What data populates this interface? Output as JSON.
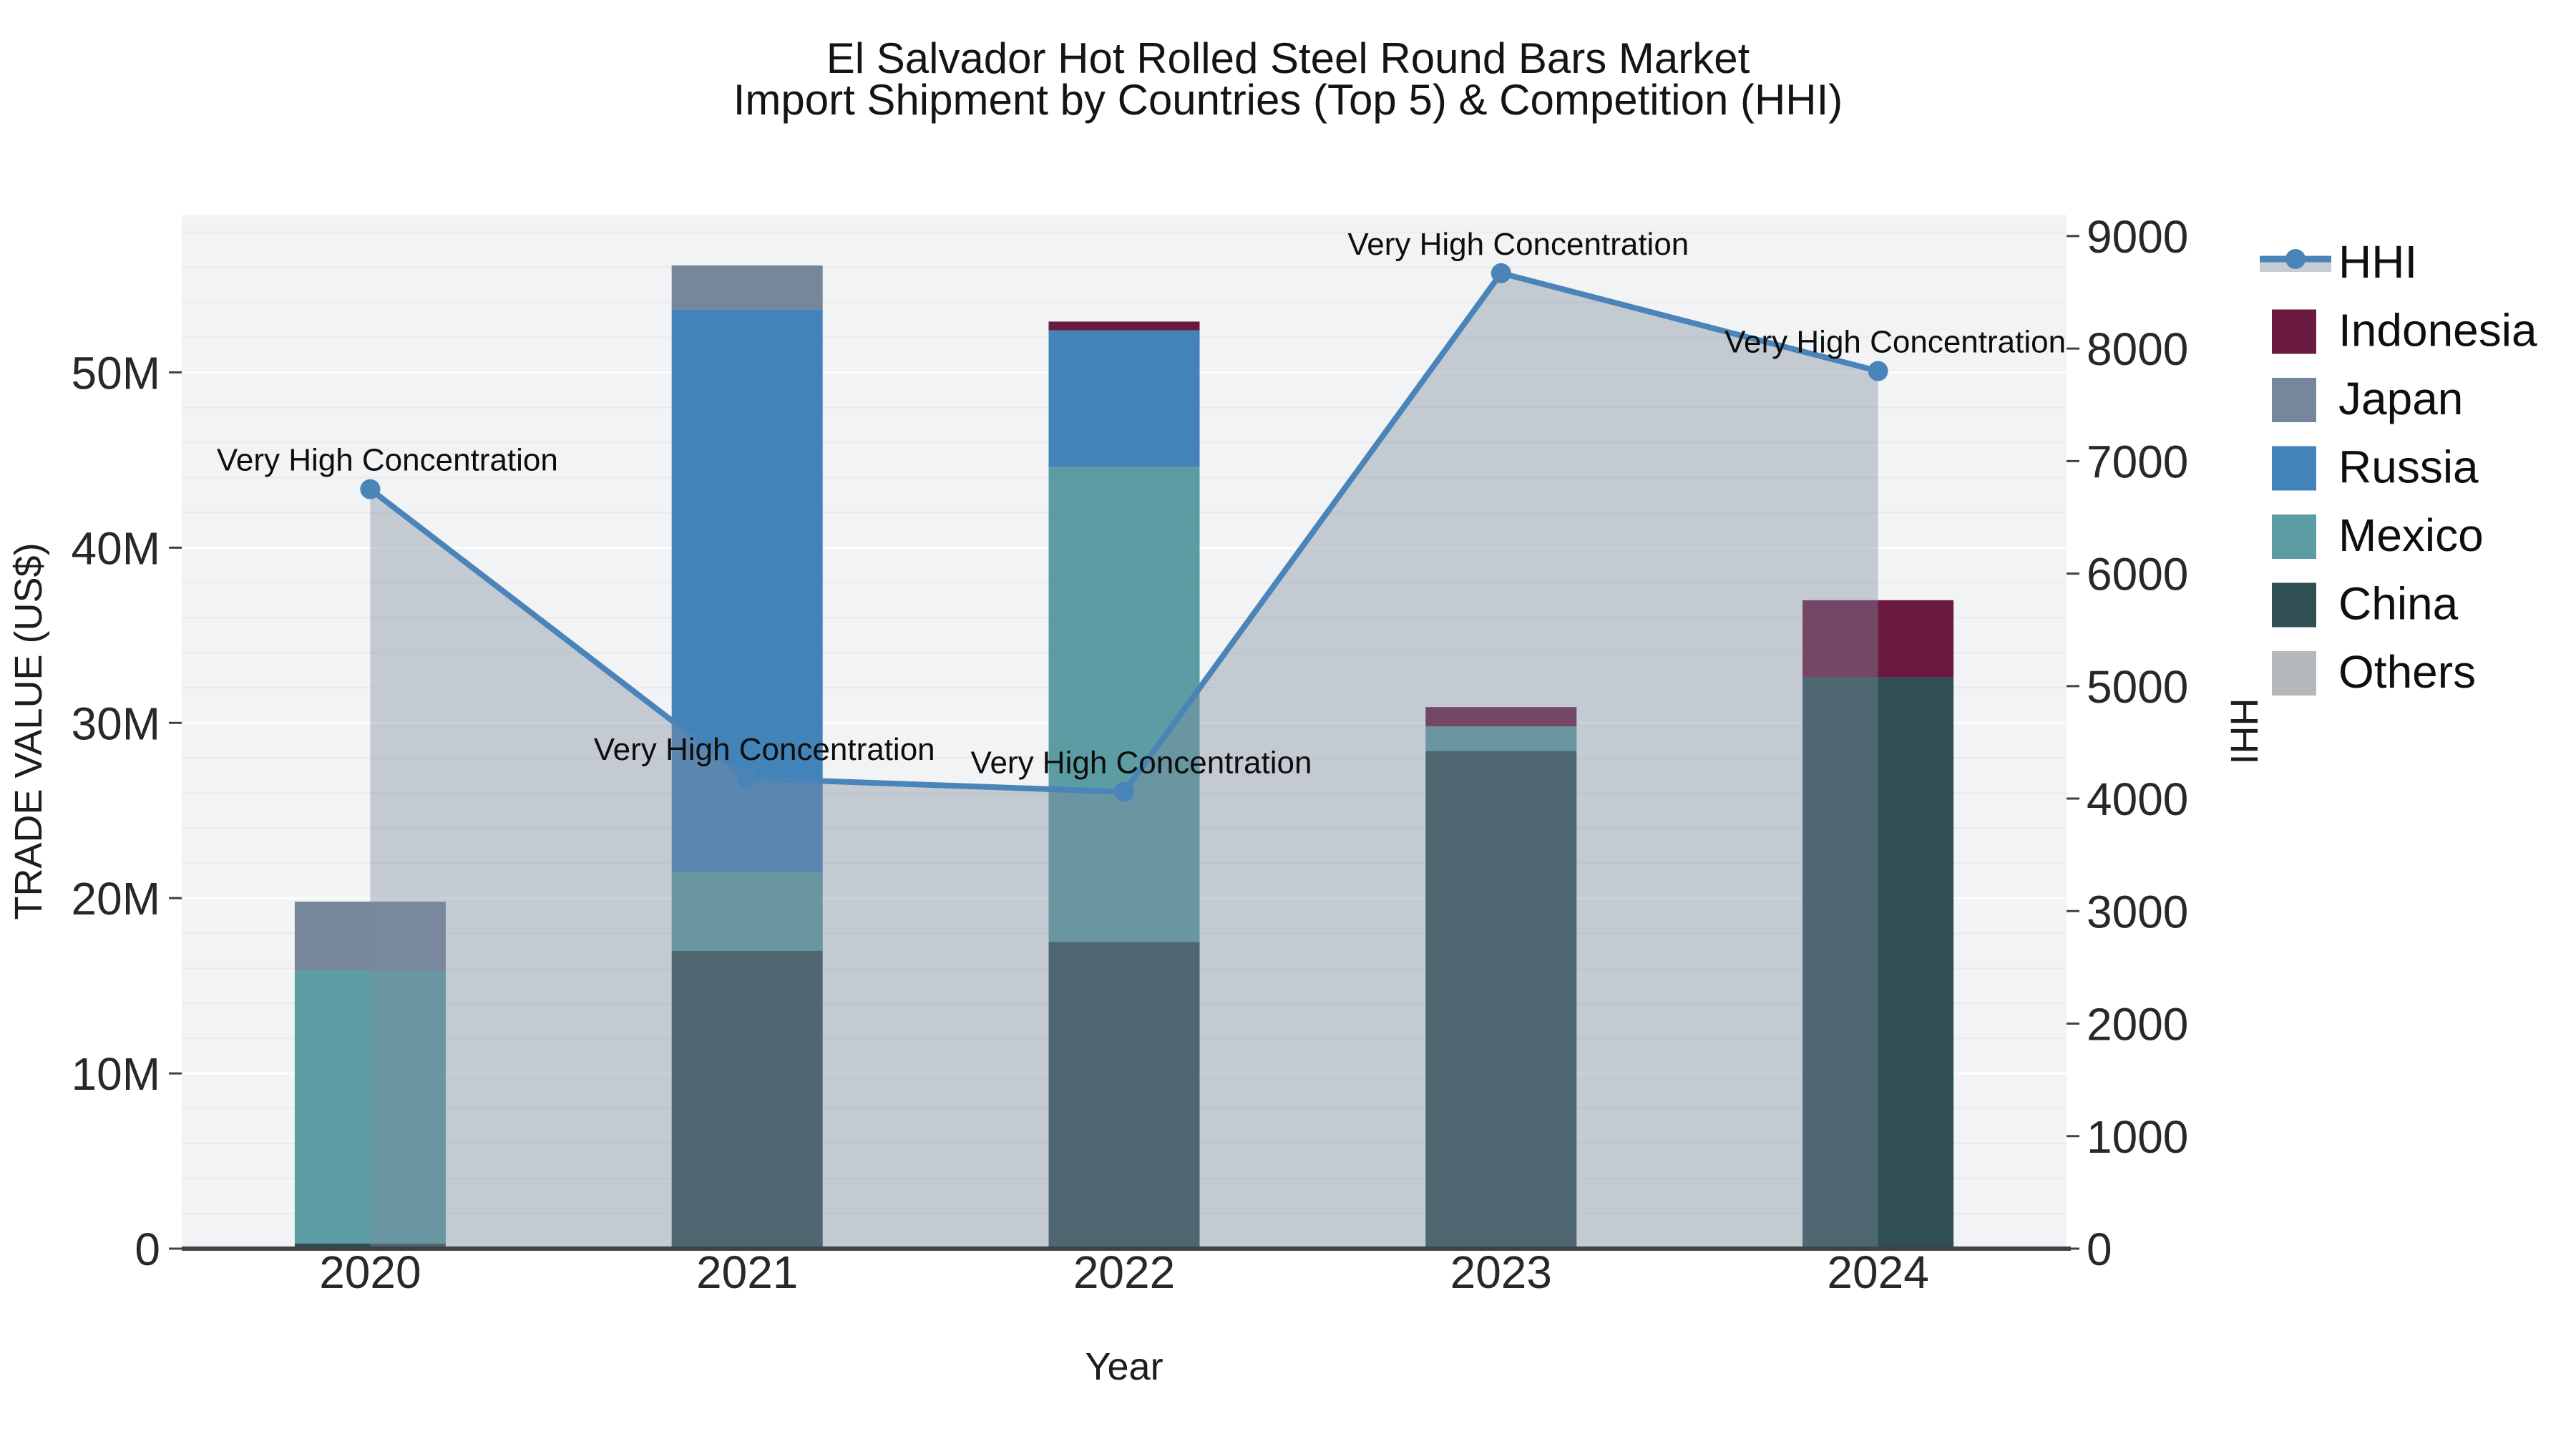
{
  "title": {
    "line1": "El Salvador Hot Rolled Steel Round Bars Market",
    "line2": "Import Shipment by Countries (Top 5) & Competition (HHI)"
  },
  "chart_data": {
    "type": "stacked_bar_with_line",
    "categories": [
      "2020",
      "2021",
      "2022",
      "2023",
      "2024"
    ],
    "xlabel": "Year",
    "ylabel_left": "TRADE VALUE (US$)",
    "ylabel_right": "HHI",
    "ylim_left_musd": [
      0,
      59
    ],
    "ylim_right": [
      0,
      9190
    ],
    "yticks_left": [
      {
        "label": "0",
        "value_musd": 0
      },
      {
        "label": "10M",
        "value_musd": 10
      },
      {
        "label": "20M",
        "value_musd": 20
      },
      {
        "label": "30M",
        "value_musd": 30
      },
      {
        "label": "40M",
        "value_musd": 40
      },
      {
        "label": "50M",
        "value_musd": 50
      }
    ],
    "yticks_right": [
      {
        "label": "0",
        "value": 0
      },
      {
        "label": "1000",
        "value": 1000
      },
      {
        "label": "2000",
        "value": 2000
      },
      {
        "label": "3000",
        "value": 3000
      },
      {
        "label": "4000",
        "value": 4000
      },
      {
        "label": "5000",
        "value": 5000
      },
      {
        "label": "6000",
        "value": 6000
      },
      {
        "label": "7000",
        "value": 7000
      },
      {
        "label": "8000",
        "value": 8000
      },
      {
        "label": "9000",
        "value": 9000
      }
    ],
    "bar_series": [
      {
        "name": "China",
        "color": "#2F4F53",
        "values_musd": [
          0.3,
          17.0,
          17.5,
          28.4,
          32.6
        ]
      },
      {
        "name": "Mexico",
        "color": "#5B9DA2",
        "values_musd": [
          15.6,
          4.5,
          27.1,
          1.4,
          0
        ]
      },
      {
        "name": "Russia",
        "color": "#4283B9",
        "values_musd": [
          0,
          32.1,
          7.8,
          0,
          0
        ]
      },
      {
        "name": "Japan",
        "color": "#76869B",
        "values_musd": [
          3.9,
          2.5,
          0,
          0,
          0
        ]
      },
      {
        "name": "Indonesia",
        "color": "#6B1A3F",
        "values_musd": [
          0,
          0,
          0.5,
          1.1,
          4.4
        ]
      },
      {
        "name": "Others",
        "color": "#B4B8BB",
        "values_musd": [
          0,
          0,
          0,
          0,
          0
        ]
      }
    ],
    "line_series": {
      "name": "HHI",
      "color": "#4A84B8",
      "fill_color": "#7F8BA0",
      "fill_opacity": 0.4,
      "values": [
        6750,
        4180,
        4060,
        8670,
        7800
      ]
    },
    "annotations": [
      "Very High Concentration",
      "Very High Concentration",
      "Very High Concentration",
      "Very High Concentration",
      "Very High Concentration"
    ],
    "legend": {
      "position": "right-outside-top",
      "order": [
        "HHI",
        "Indonesia",
        "Japan",
        "Russia",
        "Mexico",
        "China",
        "Others"
      ],
      "hhi_band_color": "#C7CBD3"
    },
    "plot_bg": "#F2F3F4",
    "grid_major_color": "#FDFDFE",
    "grid_minor_color": "#E8EAEC",
    "axis_line_color": "#3E4349"
  }
}
